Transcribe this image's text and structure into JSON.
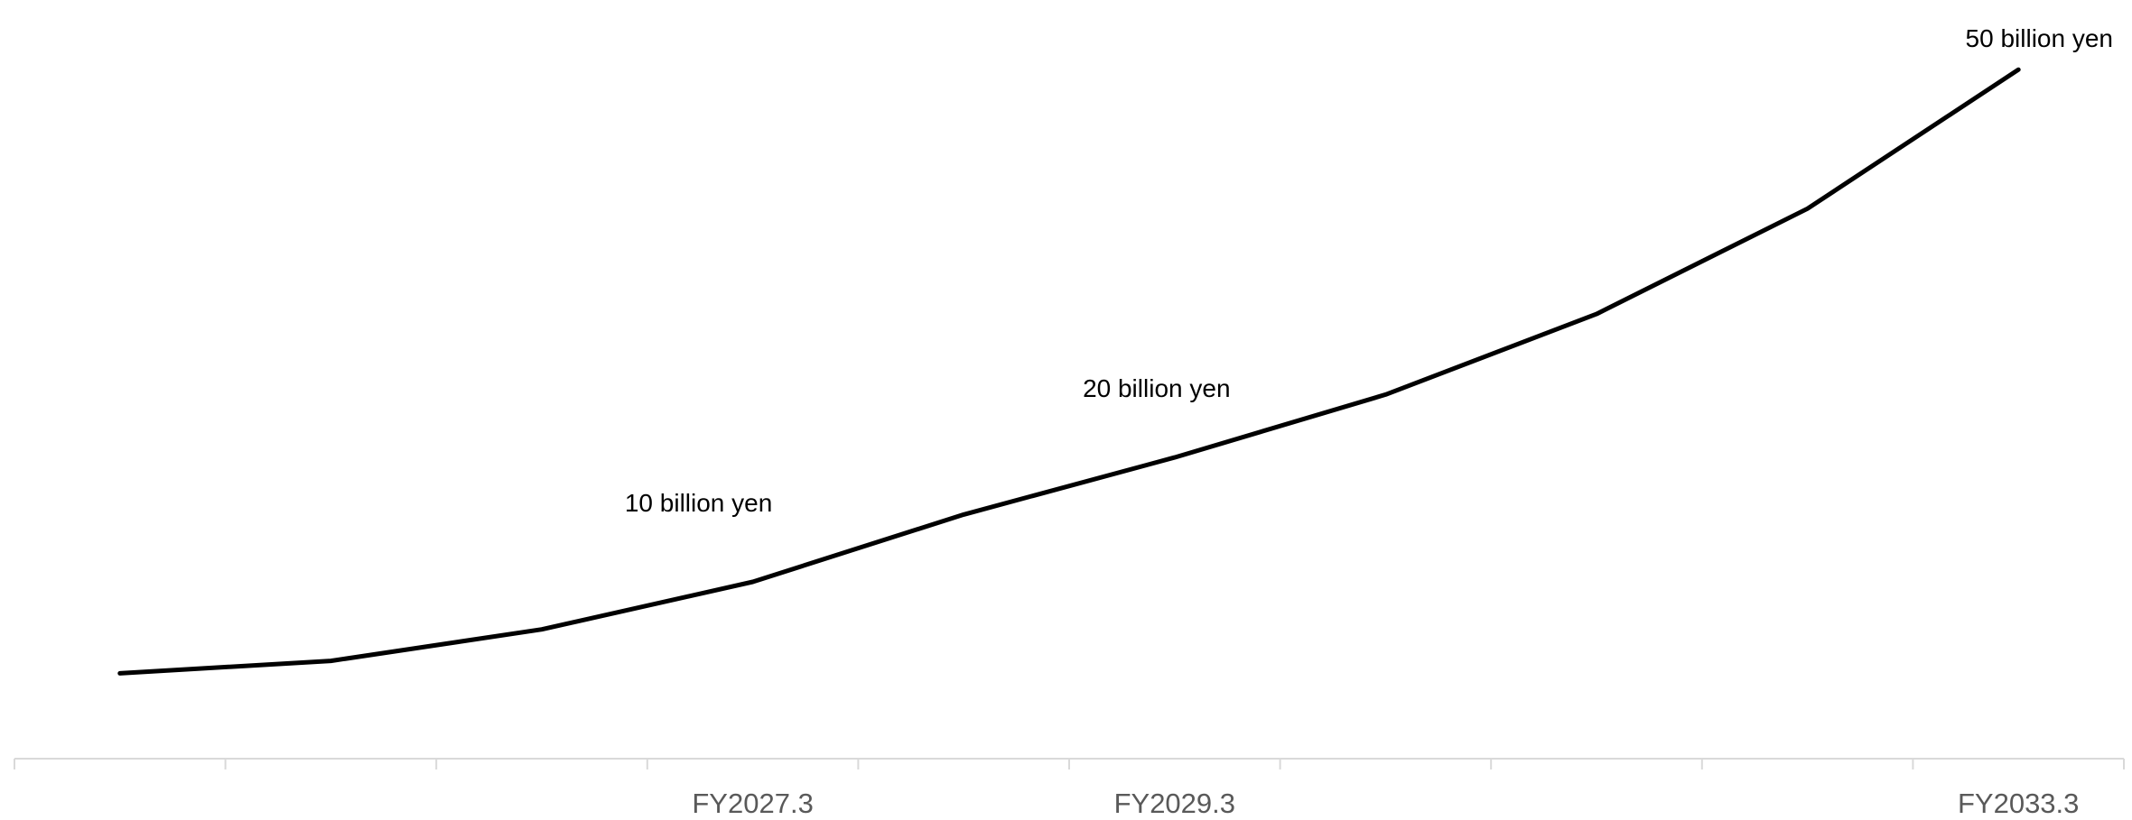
{
  "chart_data": {
    "type": "line",
    "title": "",
    "xlabel": "",
    "ylabel": "",
    "categories": [
      "",
      "",
      "",
      "FY2027.3",
      "",
      "FY2029.3",
      "",
      "",
      "",
      "FY2033.3"
    ],
    "series": [
      {
        "values": [
          0.5,
          2.2,
          6.5,
          13.0,
          22.2,
          30.0,
          38.6,
          49.6,
          64.0,
          83.0
        ]
      }
    ],
    "annotations": [
      {
        "text": "10 billion yen",
        "category_index": 3
      },
      {
        "text": "20 billion yen",
        "category_index": 5
      },
      {
        "text": "50 billion yen",
        "category_index": 9
      }
    ],
    "ylim": [
      -5,
      85
    ],
    "grid": false,
    "legend": "none",
    "colors": {
      "line": "#000000",
      "axis": "#d9d9d9",
      "tick_label": "#595959"
    }
  }
}
